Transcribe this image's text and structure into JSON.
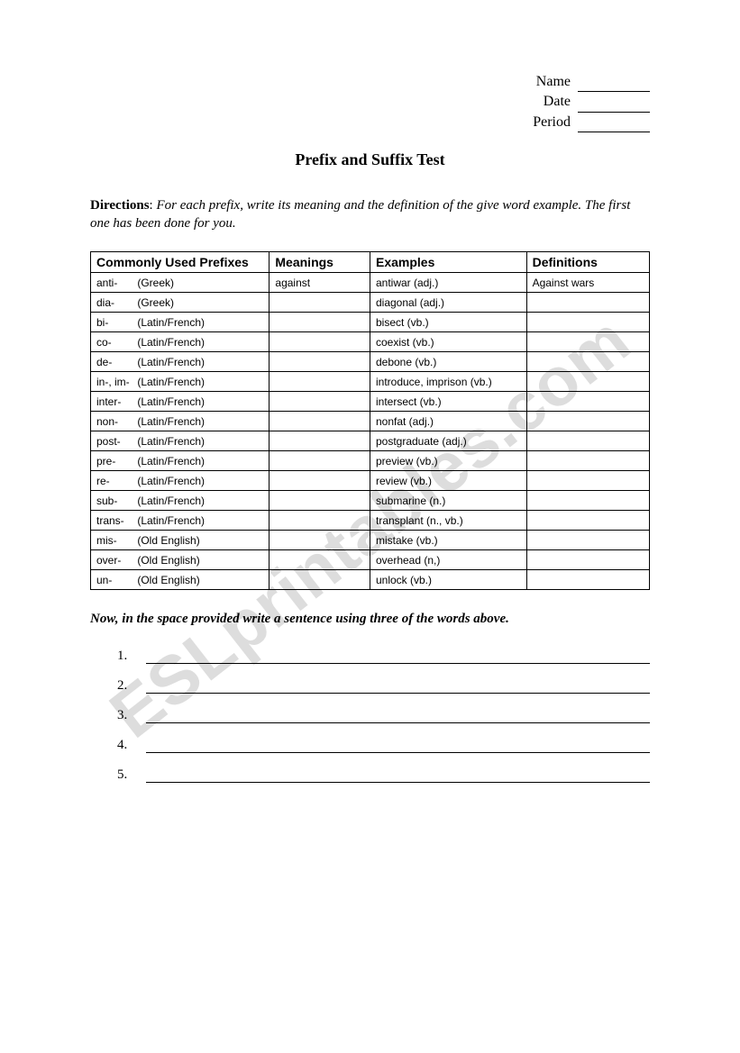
{
  "watermark": "ESLprintables.com",
  "header": {
    "name_label": "Name",
    "date_label": "Date",
    "period_label": "Period"
  },
  "title": "Prefix and Suffix Test",
  "directions": {
    "label": "Directions",
    "body": "For each prefix, write its meaning and the definition of the give word example.  The first one has been done for you."
  },
  "table": {
    "headers": {
      "prefix": "Commonly Used Prefixes",
      "meanings": "Meanings",
      "examples": "Examples",
      "definitions": "Definitions"
    },
    "rows": [
      {
        "prefix": "anti-",
        "origin": "(Greek)",
        "meaning": "against",
        "example": "antiwar (adj.)",
        "definition": "Against wars"
      },
      {
        "prefix": "dia-",
        "origin": "(Greek)",
        "meaning": "",
        "example": "diagonal (adj.)",
        "definition": ""
      },
      {
        "prefix": "bi-",
        "origin": "(Latin/French)",
        "meaning": "",
        "example": "bisect (vb.)",
        "definition": ""
      },
      {
        "prefix": "co-",
        "origin": "(Latin/French)",
        "meaning": "",
        "example": "coexist (vb.)",
        "definition": ""
      },
      {
        "prefix": "de-",
        "origin": "(Latin/French)",
        "meaning": "",
        "example": "debone (vb.)",
        "definition": ""
      },
      {
        "prefix": "in-, im-",
        "origin": "(Latin/French)",
        "meaning": "",
        "example": "introduce, imprison (vb.)",
        "definition": ""
      },
      {
        "prefix": "inter-",
        "origin": "(Latin/French)",
        "meaning": "",
        "example": "intersect (vb.)",
        "definition": ""
      },
      {
        "prefix": "non-",
        "origin": "(Latin/French)",
        "meaning": "",
        "example": "nonfat (adj.)",
        "definition": ""
      },
      {
        "prefix": "post-",
        "origin": "(Latin/French)",
        "meaning": "",
        "example": "postgraduate (adj.)",
        "definition": ""
      },
      {
        "prefix": "pre-",
        "origin": "(Latin/French)",
        "meaning": "",
        "example": "preview (vb.)",
        "definition": ""
      },
      {
        "prefix": "re-",
        "origin": "(Latin/French)",
        "meaning": "",
        "example": "review (vb.)",
        "definition": ""
      },
      {
        "prefix": "sub-",
        "origin": "(Latin/French)",
        "meaning": "",
        "example": "submarine (n.)",
        "definition": ""
      },
      {
        "prefix": "trans-",
        "origin": "(Latin/French)",
        "meaning": "",
        "example": "transplant (n., vb.)",
        "definition": ""
      },
      {
        "prefix": "mis-",
        "origin": "(Old English)",
        "meaning": "",
        "example": "mistake (vb.)",
        "definition": ""
      },
      {
        "prefix": "over-",
        "origin": "(Old English)",
        "meaning": "",
        "example": "overhead (n,)",
        "definition": ""
      },
      {
        "prefix": "un-",
        "origin": "(Old English)",
        "meaning": "",
        "example": "unlock (vb.)",
        "definition": ""
      }
    ]
  },
  "instruction2": "Now, in the space provided write a sentence using three of the words above.",
  "sentence_lines": [
    "1.",
    "2.",
    "3.",
    "4.",
    "5."
  ]
}
